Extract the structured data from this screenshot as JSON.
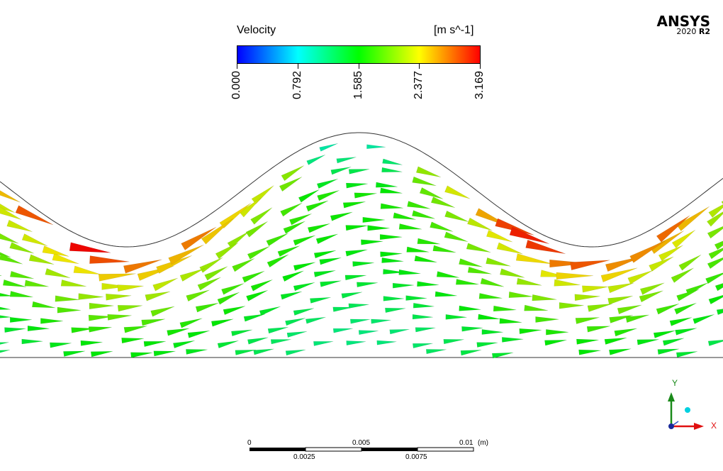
{
  "legend": {
    "title": "Velocity",
    "units": "[m s^-1]",
    "ticks": [
      "0.000",
      "0.792",
      "1.585",
      "2.377",
      "3.169"
    ],
    "colors": [
      "#0000ff",
      "#00ffff",
      "#00ff00",
      "#ffff00",
      "#ff0000"
    ]
  },
  "brand": {
    "name": "ANSYS",
    "version_prefix": "2020",
    "version_suffix": "R2"
  },
  "scale_bar": {
    "top_labels": [
      "0",
      "0.005",
      "0.01"
    ],
    "unit": "(m)",
    "bottom_labels": [
      "0.0025",
      "0.0075"
    ]
  },
  "axes": {
    "y_label": "Y",
    "x_label": "X",
    "y_color": "#1a8a1a",
    "x_color": "#e01010"
  },
  "vector_field": {
    "max_velocity": 3.169,
    "arrow_color_scale": "Velocity"
  }
}
